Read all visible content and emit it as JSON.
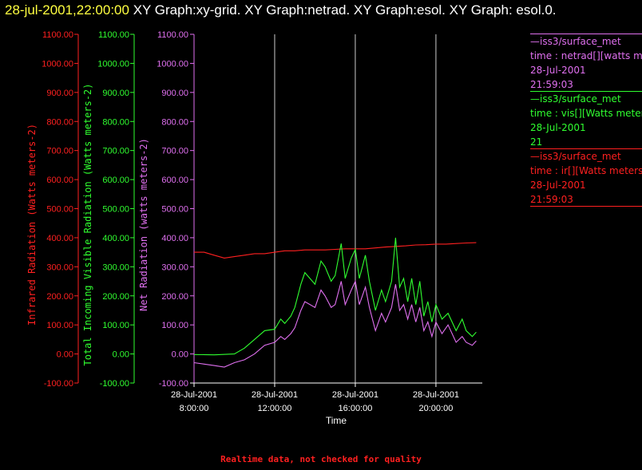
{
  "title": {
    "timestamp": "28-jul-2001,22:00:00",
    "text": " XY Graph:xy-grid.  XY Graph:netrad.  XY Graph:esol.  XY Graph: esol.0."
  },
  "colors": {
    "ir": "#ff2020",
    "vis": "#30ff30",
    "net": "#e070f0",
    "grid": "#ffffff",
    "axis": "#ffffff"
  },
  "legend": [
    {
      "name": "legend-net",
      "color": "#e070f0",
      "lines": [
        "—iss3/surface_met",
        "time : netrad[][watts met",
        "28-Jul-2001",
        "21:59:03"
      ]
    },
    {
      "name": "legend-vis",
      "color": "#30ff30",
      "lines": [
        "—iss3/surface_met",
        "time : vis[][Watts meter",
        "28-Jul-2001",
        "21"
      ]
    },
    {
      "name": "legend-ir",
      "color": "#ff2020",
      "lines": [
        "—iss3/surface_met",
        "time : ir[][Watts meters",
        "28-Jul-2001",
        "21:59:03"
      ]
    }
  ],
  "footer": "Realtime data, not checked for quality",
  "chart_data": {
    "type": "line",
    "xlabel": "Time",
    "x_ticks": [
      {
        "value": 8,
        "label": [
          "28-Jul-2001",
          "8:00:00"
        ]
      },
      {
        "value": 12,
        "label": [
          "28-Jul-2001",
          "12:00:00"
        ]
      },
      {
        "value": 16,
        "label": [
          "28-Jul-2001",
          "16:00:00"
        ]
      },
      {
        "value": 20,
        "label": [
          "28-Jul-2001",
          "20:00:00"
        ]
      }
    ],
    "xlim_hours": [
      8,
      22.3
    ],
    "grid_x_hours": [
      12,
      16,
      20
    ],
    "y_ticks": [
      -100,
      0,
      100,
      200,
      300,
      400,
      500,
      600,
      700,
      800,
      900,
      1000,
      1100
    ],
    "y_tick_labels": [
      "-100.00",
      "0.00",
      "100.00",
      "200.00",
      "300.00",
      "400.00",
      "500.00",
      "600.00",
      "700.00",
      "800.00",
      "900.00",
      "1000.00",
      "1100.00"
    ],
    "ylim": [
      -100,
      1100
    ],
    "axes": [
      {
        "name": "ir-axis",
        "label": "Infrared Radiation (Watts meters-2)",
        "color": "#ff2020"
      },
      {
        "name": "vis-axis",
        "label": "Total Incoming Visible Radiation (Watts meters-2)",
        "color": "#30ff30"
      },
      {
        "name": "net-axis",
        "label": "Net Radiation (watts meters-2)",
        "color": "#e070f0"
      }
    ],
    "series": [
      {
        "key": "ir",
        "color": "#ff2020",
        "x": [
          8,
          8.5,
          9,
          9.5,
          10,
          10.5,
          11,
          11.5,
          12,
          12.5,
          13,
          13.5,
          14,
          14.5,
          15,
          15.5,
          16,
          16.5,
          17,
          17.5,
          18,
          18.5,
          19,
          19.5,
          20,
          20.5,
          21,
          21.5,
          22
        ],
        "y": [
          350,
          350,
          340,
          330,
          335,
          340,
          345,
          345,
          350,
          355,
          355,
          358,
          358,
          358,
          360,
          362,
          362,
          362,
          365,
          368,
          370,
          372,
          375,
          376,
          378,
          378,
          380,
          382,
          383
        ]
      },
      {
        "key": "vis",
        "color": "#30ff30",
        "x": [
          8,
          9,
          10,
          10.5,
          11,
          11.5,
          12,
          12.3,
          12.5,
          12.8,
          13,
          13.3,
          13.5,
          14,
          14.3,
          14.5,
          14.8,
          15,
          15.3,
          15.5,
          15.8,
          16,
          16.2,
          16.5,
          16.7,
          17,
          17.3,
          17.5,
          17.8,
          18,
          18.2,
          18.4,
          18.6,
          18.8,
          19,
          19.2,
          19.4,
          19.6,
          19.8,
          20,
          20.3,
          20.6,
          21,
          21.3,
          21.5,
          21.8,
          22
        ],
        "y": [
          -2,
          -3,
          0,
          20,
          50,
          80,
          85,
          120,
          105,
          130,
          160,
          240,
          280,
          240,
          320,
          300,
          250,
          270,
          380,
          260,
          330,
          360,
          260,
          340,
          250,
          150,
          220,
          180,
          250,
          400,
          230,
          260,
          180,
          260,
          170,
          250,
          130,
          180,
          110,
          170,
          120,
          140,
          80,
          120,
          80,
          60,
          75
        ]
      },
      {
        "key": "net",
        "color": "#e070f0",
        "x": [
          8,
          9,
          9.5,
          10,
          10.5,
          11,
          11.5,
          12,
          12.3,
          12.5,
          12.8,
          13,
          13.3,
          13.5,
          14,
          14.3,
          14.5,
          14.8,
          15,
          15.3,
          15.5,
          15.8,
          16,
          16.2,
          16.5,
          16.7,
          17,
          17.3,
          17.5,
          17.8,
          18,
          18.2,
          18.4,
          18.6,
          18.8,
          19,
          19.2,
          19.4,
          19.6,
          19.8,
          20,
          20.3,
          20.6,
          21,
          21.3,
          21.5,
          21.8,
          22
        ],
        "y": [
          -30,
          -40,
          -45,
          -30,
          -20,
          0,
          30,
          40,
          60,
          50,
          70,
          90,
          150,
          180,
          160,
          220,
          200,
          160,
          170,
          250,
          170,
          220,
          250,
          170,
          230,
          160,
          80,
          140,
          110,
          160,
          240,
          150,
          170,
          120,
          170,
          110,
          160,
          80,
          110,
          60,
          110,
          70,
          100,
          40,
          60,
          40,
          30,
          45
        ]
      }
    ]
  }
}
